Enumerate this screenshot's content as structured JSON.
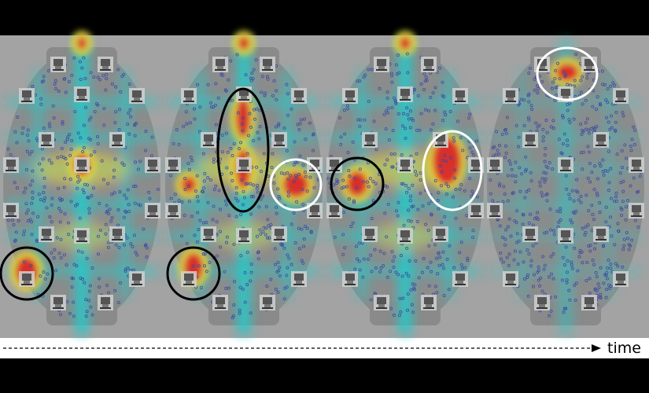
{
  "figure": {
    "time_label": "time",
    "colors": {
      "background": "#a3a3a3",
      "arena": "#8a8a8a",
      "dots": "#3a4aa0",
      "heat_low": "#27c8c8",
      "heat_mid": "#e6d33a",
      "heat_high": "#d8262a",
      "marker_dark": "#000000",
      "marker_light": "#ffffff"
    },
    "panel_count": 4,
    "icon": "robot-station-icon"
  }
}
